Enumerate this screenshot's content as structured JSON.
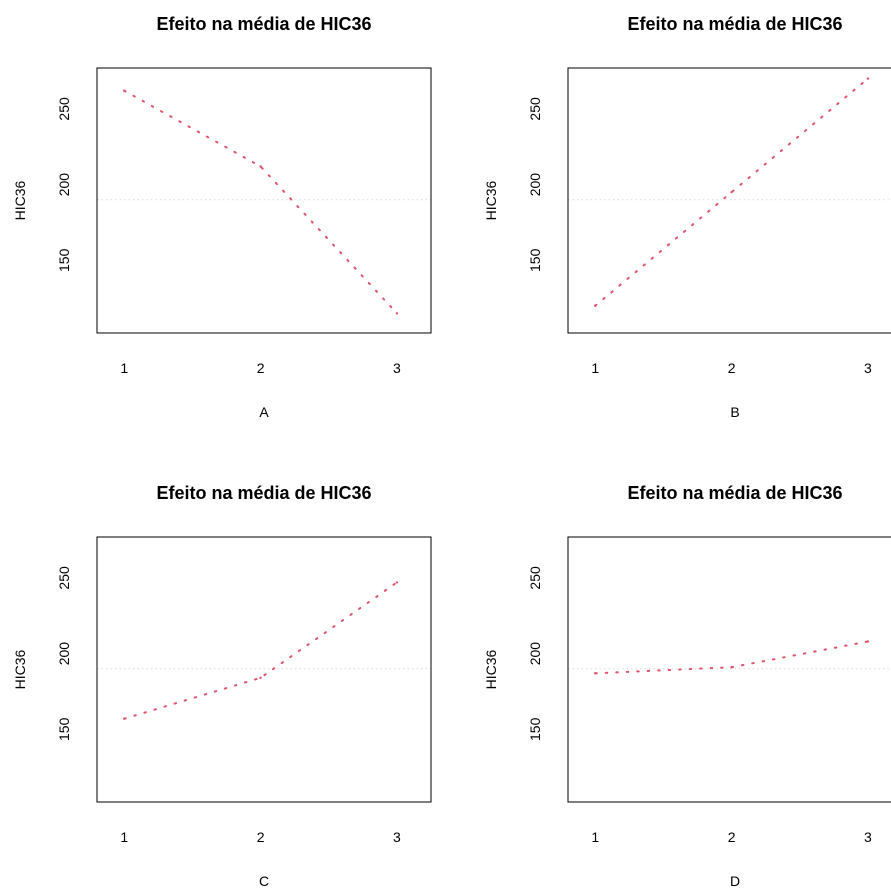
{
  "colors": {
    "effect_line": "#DF536B",
    "mean_line": "#d9d9d9",
    "axes": "#000000"
  },
  "chart_data": [
    {
      "type": "line",
      "title": "Efeito na média de HIC36",
      "xlabel": "A",
      "ylabel": "HIC36",
      "x_ticks": [
        "1",
        "2",
        "3"
      ],
      "y_ticks": [
        "150",
        "200",
        "250"
      ],
      "xlim": [
        0.8,
        3.25
      ],
      "ylim": [
        102,
        277
      ],
      "line_style": "dotted",
      "overall_mean": 190,
      "x": [
        1,
        2,
        3
      ],
      "values": [
        262,
        212,
        115
      ]
    },
    {
      "type": "line",
      "title": "Efeito na média de HIC36",
      "xlabel": "B",
      "ylabel": "HIC36",
      "x_ticks": [
        "1",
        "2",
        "3"
      ],
      "y_ticks": [
        "150",
        "200",
        "250"
      ],
      "xlim": [
        0.8,
        3.25
      ],
      "ylim": [
        102,
        277
      ],
      "line_style": "dotted",
      "overall_mean": 190,
      "x": [
        1,
        2,
        3
      ],
      "values": [
        120,
        195,
        270
      ]
    },
    {
      "type": "line",
      "title": "Efeito na média de HIC36",
      "xlabel": "C",
      "ylabel": "HIC36",
      "x_ticks": [
        "1",
        "2",
        "3"
      ],
      "y_ticks": [
        "150",
        "200",
        "250"
      ],
      "xlim": [
        0.8,
        3.25
      ],
      "ylim": [
        102,
        277
      ],
      "line_style": "dotted",
      "overall_mean": 190,
      "x": [
        1,
        2,
        3
      ],
      "values": [
        157,
        184,
        247
      ]
    },
    {
      "type": "line",
      "title": "Efeito na média de HIC36",
      "xlabel": "D",
      "ylabel": "HIC36",
      "x_ticks": [
        "1",
        "2",
        "3"
      ],
      "y_ticks": [
        "150",
        "200",
        "250"
      ],
      "xlim": [
        0.8,
        3.25
      ],
      "ylim": [
        102,
        277
      ],
      "line_style": "dotted",
      "overall_mean": 190,
      "x": [
        1,
        2,
        3
      ],
      "values": [
        187,
        191,
        208
      ]
    }
  ]
}
